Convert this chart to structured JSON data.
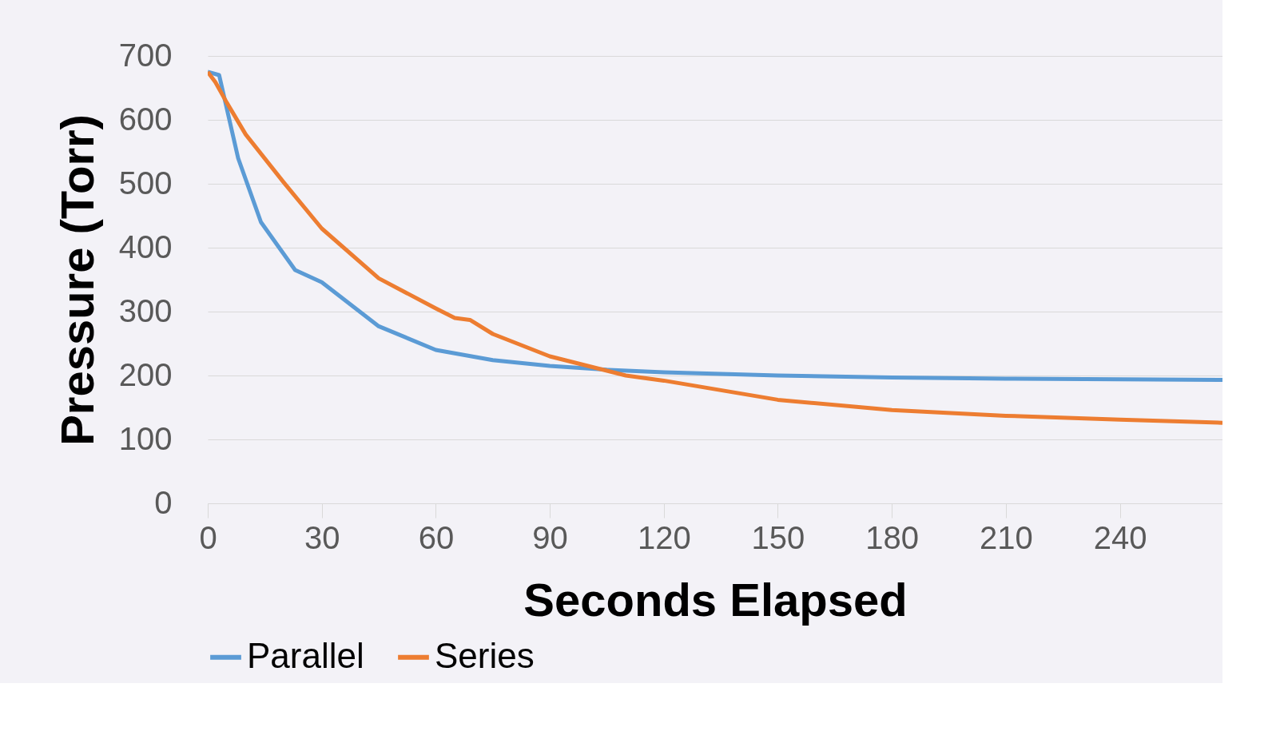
{
  "chart_data": {
    "type": "line",
    "xlabel": "Seconds Elapsed",
    "ylabel": "Pressure (Torr)",
    "xlim": [
      0,
      267
    ],
    "xticks": [
      0,
      30,
      60,
      90,
      120,
      150,
      180,
      210,
      240
    ],
    "ylim": [
      0,
      700
    ],
    "yticks": [
      0,
      100,
      200,
      300,
      400,
      500,
      600,
      700
    ],
    "grid": "y",
    "legend": "bottom",
    "marker": "none",
    "line_style": "solid",
    "series": [
      {
        "name": "Parallel",
        "color": "#5b9bd5",
        "x": [
          0,
          3,
          8,
          14,
          23,
          30,
          45,
          60,
          75,
          90,
          105,
          120,
          150,
          180,
          210,
          240,
          267
        ],
        "values": [
          675,
          670,
          540,
          440,
          365,
          346,
          277,
          240,
          224,
          215,
          209,
          205,
          200,
          197,
          195,
          194,
          193
        ]
      },
      {
        "name": "Series",
        "color": "#ed7d31",
        "x": [
          0,
          2,
          5,
          10,
          20,
          30,
          45,
          60,
          65,
          69,
          75,
          90,
          100,
          110,
          120,
          150,
          180,
          210,
          240,
          267
        ],
        "values": [
          675,
          659,
          627,
          577,
          502,
          430,
          352,
          305,
          290,
          287,
          265,
          230,
          215,
          200,
          192,
          162,
          146,
          137,
          131,
          126
        ]
      }
    ]
  }
}
